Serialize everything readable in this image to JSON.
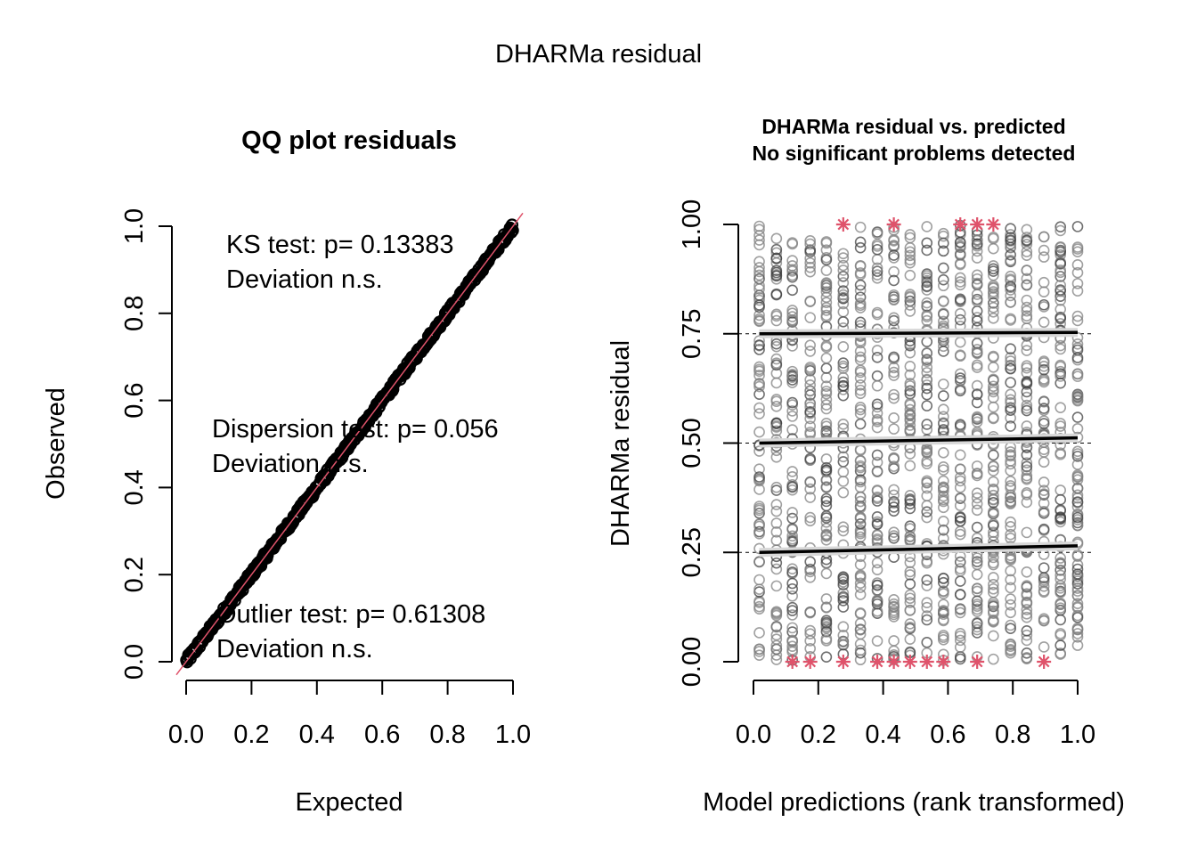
{
  "outer_title": "DHARMa residual",
  "chart_data": [
    {
      "type": "scatter",
      "title": "QQ plot residuals",
      "xlabel": "Expected",
      "ylabel": "Observed",
      "xlim": [
        0,
        1
      ],
      "ylim": [
        0,
        1
      ],
      "x_ticks": [
        "0.0",
        "0.2",
        "0.4",
        "0.6",
        "0.8",
        "1.0"
      ],
      "y_ticks": [
        "0.0",
        "0.2",
        "0.4",
        "0.6",
        "0.8",
        "1.0"
      ],
      "x_tick_values": [
        0,
        0.2,
        0.4,
        0.6,
        0.8,
        1.0
      ],
      "y_tick_values": [
        0,
        0.2,
        0.4,
        0.6,
        0.8,
        1.0
      ],
      "reference_line": {
        "slope": 1,
        "intercept": 0,
        "color": "#DF536B"
      },
      "points_color": "#000000",
      "points_description": "dense uniform QQ points tightly along the 1:1 line",
      "annotations": [
        {
          "line1": "KS test: p= 0.13383",
          "line2": "Deviation  n.s."
        },
        {
          "line1": "Dispersion test: p= 0.056",
          "line2": "Deviation  n.s."
        },
        {
          "line1": "Outlier test: p= 0.61308",
          "line2": "Deviation  n.s."
        }
      ]
    },
    {
      "type": "scatter",
      "title": "DHARMa residual vs. predicted",
      "subtitle": "No significant problems detected",
      "xlabel": "Model predictions (rank transformed)",
      "ylabel": "DHARMa residual",
      "xlim": [
        0,
        1
      ],
      "ylim": [
        0,
        1
      ],
      "x_ticks": [
        "0.0",
        "0.2",
        "0.4",
        "0.6",
        "0.8",
        "1.0"
      ],
      "y_ticks": [
        "0.00",
        "0.25",
        "0.50",
        "0.75",
        "1.00"
      ],
      "x_tick_values": [
        0,
        0.2,
        0.4,
        0.6,
        0.8,
        1.0
      ],
      "y_tick_values": [
        0,
        0.25,
        0.5,
        0.75,
        1.0
      ],
      "reference_lines_y": [
        0.25,
        0.5,
        0.75
      ],
      "point_columns_x": [
        0.018,
        0.071,
        0.12,
        0.175,
        0.225,
        0.277,
        0.33,
        0.382,
        0.433,
        0.483,
        0.535,
        0.586,
        0.638,
        0.69,
        0.74,
        0.793,
        0.843,
        0.896,
        0.947,
        1.0
      ],
      "points_description": "open grey circles spread uniformly over [0,1] in each column",
      "points_color": "#808080",
      "outliers_color": "#DF536B",
      "outliers_top_x": [
        0.277,
        0.433,
        0.638,
        0.69,
        0.74
      ],
      "outliers_bottom_x": [
        0.12,
        0.175,
        0.277,
        0.382,
        0.433,
        0.483,
        0.535,
        0.586,
        0.69,
        0.896
      ],
      "quantile_fits": [
        {
          "quantile": 0.25,
          "y_start": 0.25,
          "y_end": 0.265
        },
        {
          "quantile": 0.5,
          "y_start": 0.5,
          "y_end": 0.512
        },
        {
          "quantile": 0.75,
          "y_start": 0.75,
          "y_end": 0.753
        }
      ]
    }
  ]
}
